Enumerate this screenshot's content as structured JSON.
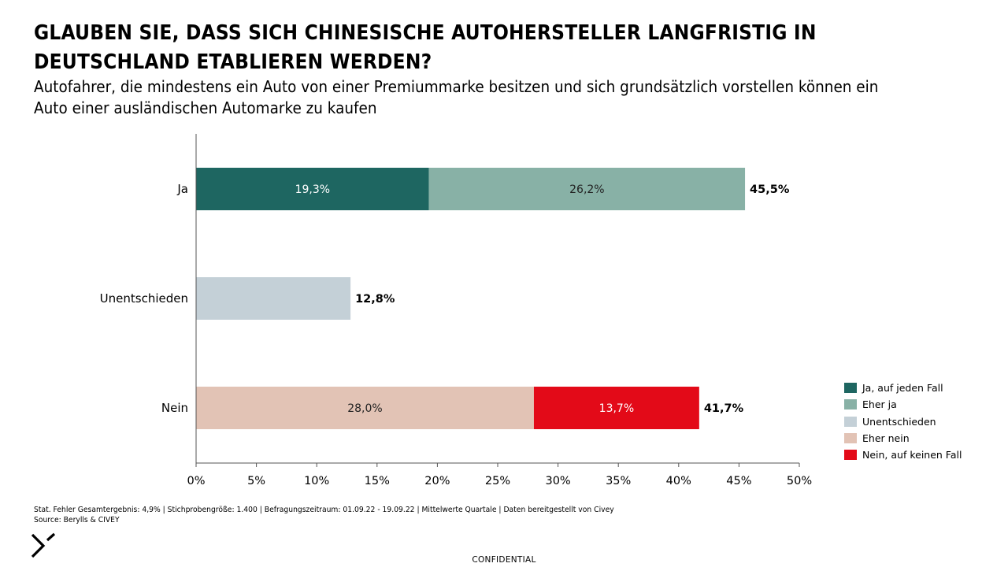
{
  "title": "GLAUBEN SIE, DASS SICH CHINESISCHE AUTOHERSTELLER LANGFRISTIG IN DEUTSCHLAND ETABLIEREN WERDEN?",
  "subtitle": "Autofahrer, die mindestens ein Auto von einer Premiummarke besitzen und sich grundsätzlich vorstellen können ein Auto einer ausländischen Automarke zu kaufen",
  "footnote": {
    "line1": "Stat. Fehler Gesamtergebnis: 4,9% | Stichprobengröße: 1.400 | Befragungszeitraum: 01.09.22 - 19.09.22 | Mittelwerte Quartale | Daten bereitgestellt von Civey",
    "line2": "Source: Berylls & CIVEY"
  },
  "confidential": "CONFIDENTIAL",
  "logo_icon": "berylls-chevron-logo-icon",
  "chart_data": {
    "type": "bar",
    "orientation": "horizontal",
    "stacked": true,
    "categories": [
      "Ja",
      "Unentschieden",
      "Nein"
    ],
    "series": [
      {
        "name": "Ja, auf jeden Fall",
        "color": "#1e6661",
        "values": [
          19.3,
          0,
          0
        ],
        "labels": [
          "19,3%",
          "",
          ""
        ],
        "label_color": "#ffffff"
      },
      {
        "name": "Eher ja",
        "color": "#88b1a6",
        "values": [
          26.2,
          0,
          0
        ],
        "labels": [
          "26,2%",
          "",
          ""
        ],
        "label_color": "#222222"
      },
      {
        "name": "Unentschieden",
        "color": "#c4d0d7",
        "values": [
          0,
          12.8,
          0
        ],
        "labels": [
          "",
          "",
          ""
        ],
        "label_color": "#222222"
      },
      {
        "name": "Eher nein",
        "color": "#e2c3b5",
        "values": [
          0,
          0,
          28.0
        ],
        "labels": [
          "",
          "",
          "28,0%"
        ],
        "label_color": "#222222"
      },
      {
        "name": "Nein, auf keinen Fall",
        "color": "#e30a18",
        "values": [
          0,
          0,
          13.7
        ],
        "labels": [
          "",
          "",
          "13,7%"
        ],
        "label_color": "#ffffff"
      }
    ],
    "totals": [
      45.5,
      12.8,
      41.7
    ],
    "total_labels": [
      "45,5%",
      "12,8%",
      "41,7%"
    ],
    "xlim": [
      0,
      50
    ],
    "xticks": [
      0,
      5,
      10,
      15,
      20,
      25,
      30,
      35,
      40,
      45,
      50
    ],
    "xtick_labels": [
      "0%",
      "5%",
      "10%",
      "15%",
      "20%",
      "25%",
      "30%",
      "35%",
      "40%",
      "45%",
      "50%"
    ],
    "xlabel": "",
    "ylabel": "",
    "grid": false,
    "legend_position": "bottom-right"
  }
}
